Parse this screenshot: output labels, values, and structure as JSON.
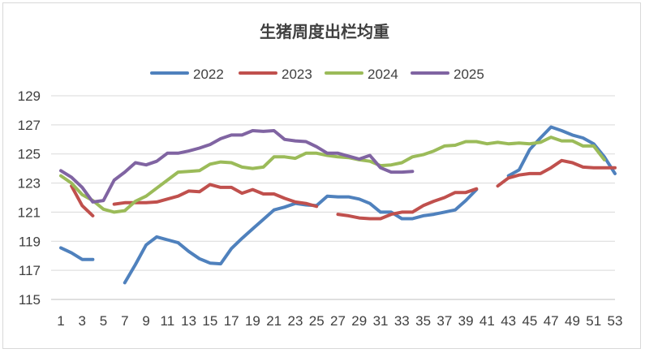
{
  "chart_data": {
    "type": "line",
    "title": "生猪周度出栏均重",
    "xlabel": "",
    "ylabel": "",
    "ylim": [
      115,
      129
    ],
    "yticks": [
      115,
      117,
      119,
      121,
      123,
      125,
      127,
      129
    ],
    "xlim": [
      1,
      53
    ],
    "xticks": [
      1,
      3,
      5,
      7,
      9,
      11,
      13,
      15,
      17,
      19,
      21,
      23,
      25,
      27,
      29,
      31,
      33,
      35,
      37,
      39,
      41,
      43,
      45,
      47,
      49,
      51,
      53
    ],
    "grid": true,
    "legend_position": "top",
    "x": [
      1,
      2,
      3,
      4,
      5,
      6,
      7,
      8,
      9,
      10,
      11,
      12,
      13,
      14,
      15,
      16,
      17,
      18,
      19,
      20,
      21,
      22,
      23,
      24,
      25,
      26,
      27,
      28,
      29,
      30,
      31,
      32,
      33,
      34,
      35,
      36,
      37,
      38,
      39,
      40,
      41,
      42,
      43,
      44,
      45,
      46,
      47,
      48,
      49,
      50,
      51,
      52,
      53
    ],
    "series": [
      {
        "name": "2022",
        "color": "#4f81bd",
        "values": [
          118.55,
          118.2,
          117.75,
          117.75,
          null,
          null,
          116.15,
          117.4,
          118.75,
          119.3,
          119.1,
          118.9,
          118.3,
          117.8,
          117.5,
          117.45,
          118.5,
          119.2,
          119.85,
          120.5,
          121.15,
          121.35,
          121.6,
          121.5,
          121.45,
          122.1,
          122.05,
          122.05,
          121.9,
          121.6,
          121,
          121,
          120.55,
          120.55,
          120.75,
          120.85,
          121,
          121.15,
          121.8,
          122.55,
          null,
          null,
          123.5,
          123.9,
          125.3,
          126.1,
          126.85,
          126.6,
          126.3,
          126.1,
          125.7,
          124.8,
          123.65
        ]
      },
      {
        "name": "2023",
        "color": "#c0504d",
        "values": [
          null,
          122.8,
          121.45,
          120.75,
          null,
          121.55,
          121.65,
          121.65,
          121.65,
          121.7,
          121.9,
          122.1,
          122.45,
          122.4,
          122.9,
          122.7,
          122.7,
          122.3,
          122.55,
          122.25,
          122.25,
          121.95,
          121.7,
          121.6,
          121.4,
          null,
          120.85,
          120.75,
          120.6,
          120.55,
          120.55,
          120.85,
          121,
          121,
          121.45,
          121.75,
          122,
          122.35,
          122.35,
          122.6,
          null,
          122.8,
          123.35,
          123.55,
          123.65,
          123.65,
          124.05,
          124.55,
          124.4,
          124.1,
          124.05,
          124.05,
          124.05
        ]
      },
      {
        "name": "2024",
        "color": "#9bbb59",
        "values": [
          123.5,
          123,
          122.2,
          121.8,
          121.2,
          121,
          121.1,
          121.75,
          122.1,
          122.65,
          123.2,
          123.75,
          123.8,
          123.85,
          124.3,
          124.45,
          124.4,
          124.1,
          124,
          124.1,
          124.8,
          124.8,
          124.7,
          125.05,
          125.05,
          124.9,
          124.8,
          124.75,
          124.6,
          124.5,
          124.2,
          124.25,
          124.4,
          124.8,
          124.95,
          125.2,
          125.55,
          125.6,
          125.85,
          125.85,
          125.7,
          125.8,
          125.7,
          125.75,
          125.7,
          125.8,
          126.15,
          125.9,
          125.9,
          125.55,
          125.55,
          124.6,
          null
        ]
      },
      {
        "name": "2025",
        "color": "#8064a2",
        "values": [
          123.85,
          123.4,
          122.7,
          121.7,
          121.8,
          123.2,
          123.75,
          124.4,
          124.25,
          124.5,
          125.05,
          125.05,
          125.2,
          125.4,
          125.65,
          126.05,
          126.3,
          126.3,
          126.6,
          126.55,
          126.6,
          126,
          125.9,
          125.85,
          125.5,
          125.05,
          125.05,
          124.85,
          124.65,
          124.9,
          124.05,
          123.75,
          123.75,
          123.8,
          null,
          null,
          null,
          null,
          null,
          null,
          null,
          null,
          null,
          null,
          null,
          null,
          null,
          null,
          null,
          null,
          null,
          null,
          null
        ]
      }
    ]
  }
}
